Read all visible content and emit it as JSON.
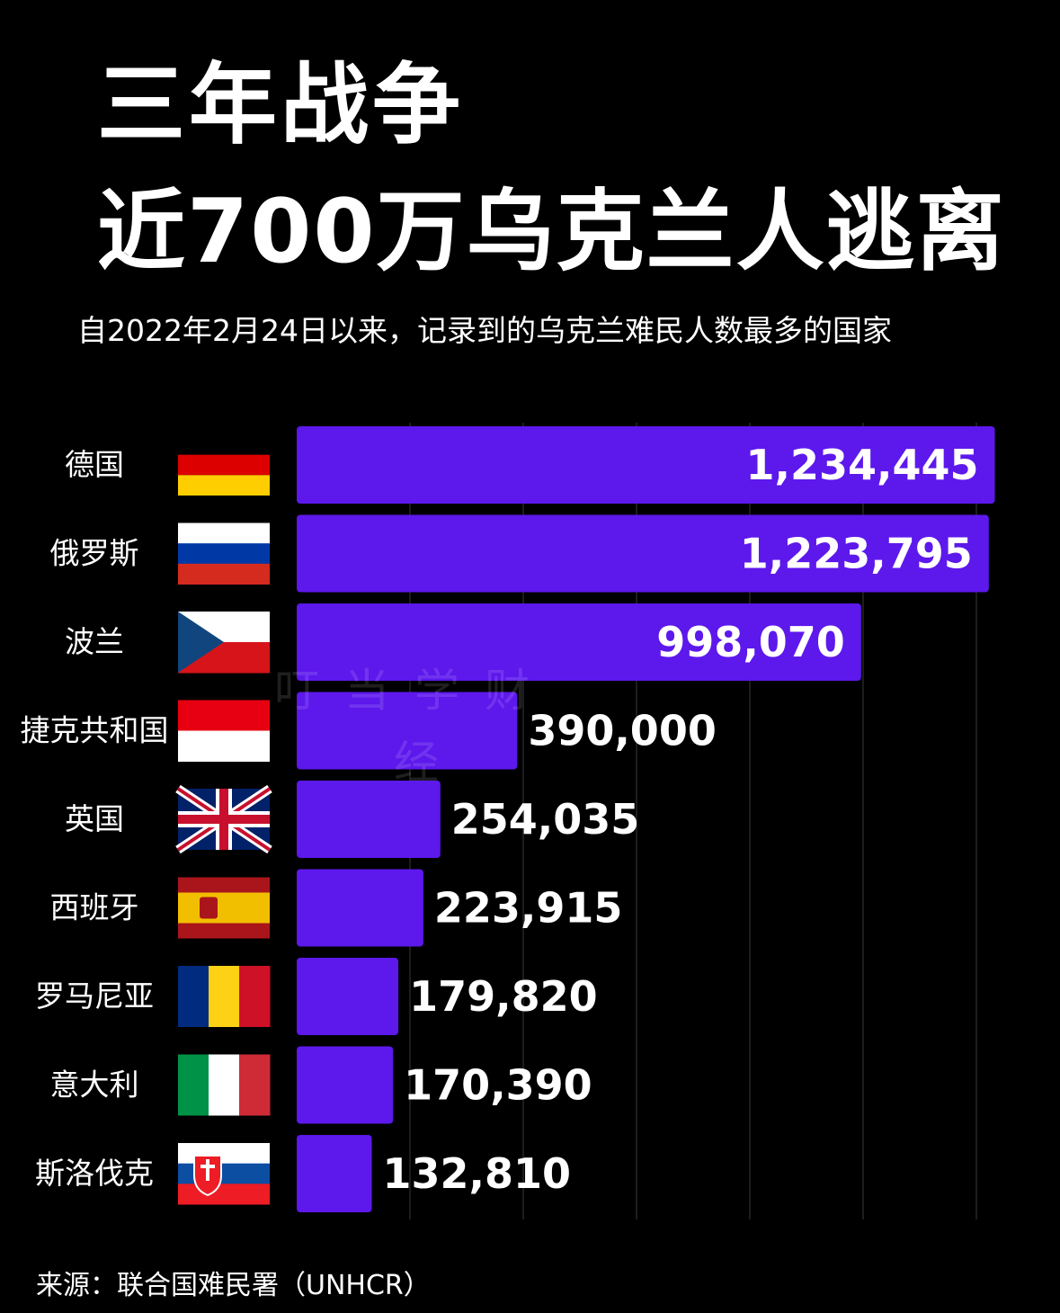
{
  "title_line1": "三年战争",
  "title_line2": "近700万乌克兰人逃离",
  "subtitle": "自2022年2月24日以来，记录到的乌克兰难民人数最多的国家",
  "source": "来源：联合国难民署（UNHCR）",
  "watermark_line1": "叮当学财",
  "watermark_line2": "经",
  "colors": {
    "bar": "#5d18ec",
    "background": "#000000",
    "text": "#ffffff",
    "gridline": "#3a3a3a"
  },
  "chart_data": {
    "type": "bar",
    "orientation": "horizontal",
    "categories": [
      "德国",
      "俄罗斯",
      "波兰",
      "捷克共和国",
      "英国",
      "西班牙",
      "罗马尼亚",
      "意大利",
      "斯洛伐克"
    ],
    "values": [
      1234445,
      1223795,
      998070,
      390000,
      254035,
      223915,
      179820,
      170390,
      132810
    ],
    "value_labels": [
      "1,234,445",
      "1,223,795",
      "998,070",
      "390,000",
      "254,035",
      "223,915",
      "179,820",
      "170,390",
      "132,810"
    ],
    "flags": [
      "flag-germany-icon",
      "flag-russia-icon",
      "flag-czech-icon",
      "flag-indonesia-icon",
      "flag-uk-icon",
      "flag-spain-icon",
      "flag-romania-icon",
      "flag-italy-icon",
      "flag-slovakia-icon"
    ],
    "xlim": [
      0,
      1240000
    ],
    "grid": true
  }
}
